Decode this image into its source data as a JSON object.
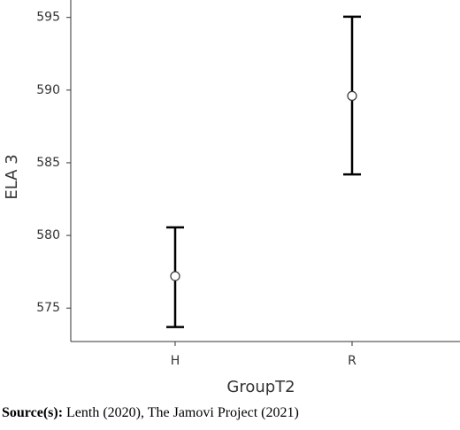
{
  "chart_data": {
    "type": "errorbar",
    "xlabel": "GroupT2",
    "ylabel": "ELA 3",
    "categories": [
      "H",
      "R"
    ],
    "values": [
      577.2,
      589.6
    ],
    "ci_lower": [
      573.7,
      584.2
    ],
    "ci_upper": [
      580.55,
      595.05
    ],
    "color": "#000000",
    "ylim": [
      572.7,
      596.2
    ],
    "yticks": [
      575,
      580,
      585,
      590,
      595
    ],
    "grid": false
  },
  "caption": {
    "label": "Source(s):",
    "text": "Lenth (2020), The Jamovi Project (2021)"
  }
}
